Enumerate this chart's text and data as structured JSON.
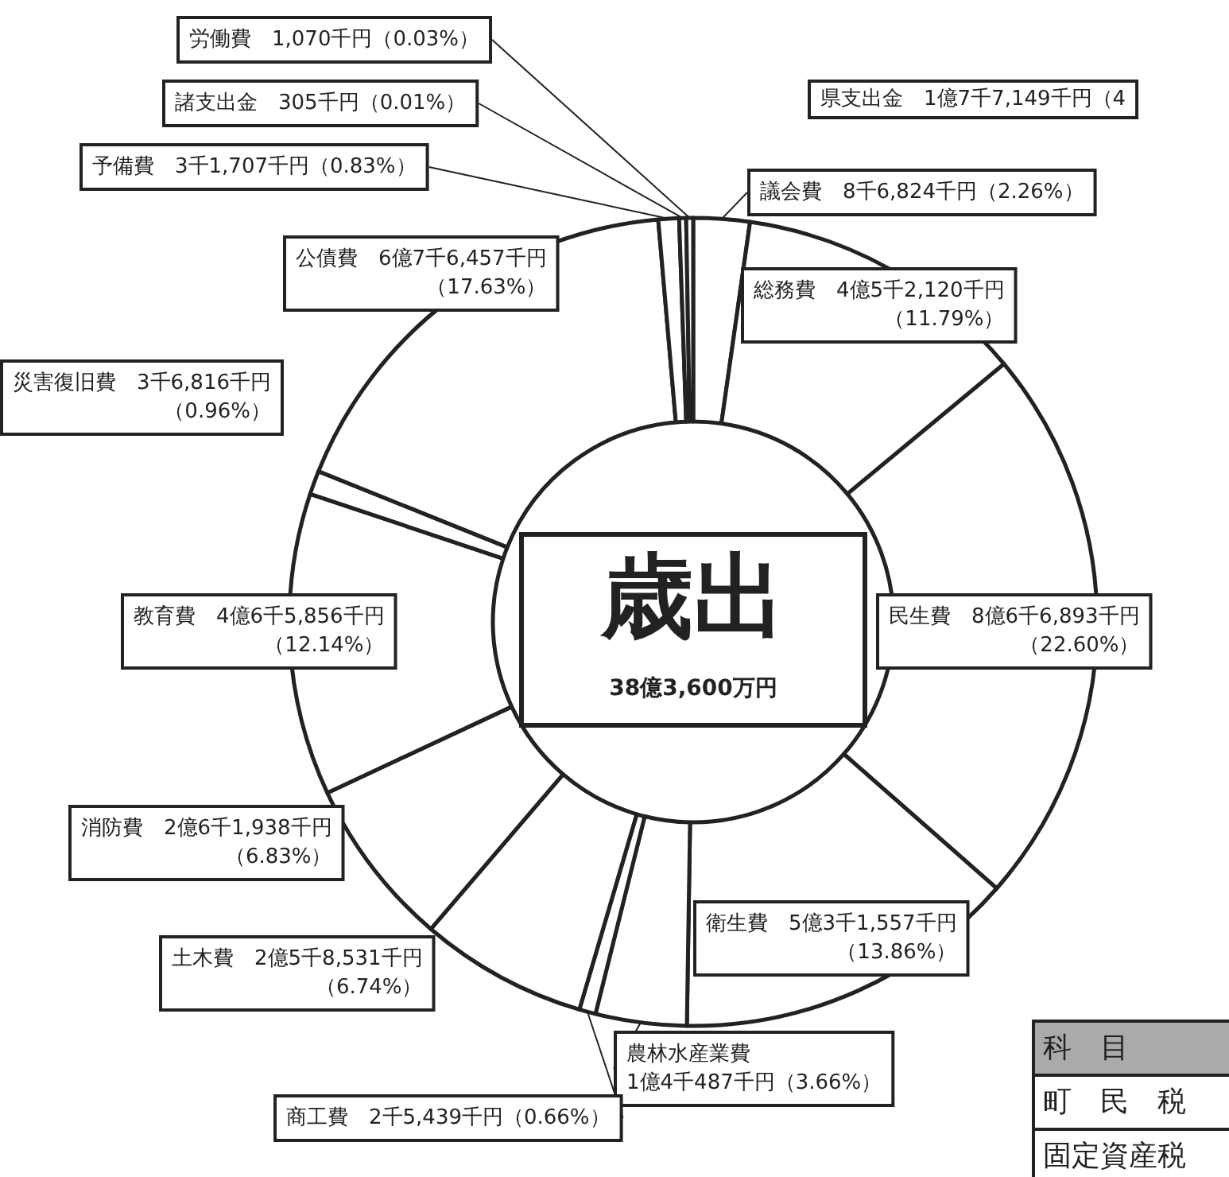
{
  "chart_data": {
    "type": "donut",
    "title": "歳出",
    "subtitle": "38億3,600万円",
    "categories": [
      "議会費",
      "総務費",
      "民生費",
      "衛生費",
      "農林水産業費",
      "商工費",
      "土木費",
      "消防費",
      "教育費",
      "災害復旧費",
      "公債費",
      "予備費",
      "諸支出金",
      "労働費"
    ],
    "values": [
      2.26,
      11.79,
      22.6,
      13.86,
      3.66,
      0.66,
      6.74,
      6.83,
      12.14,
      0.96,
      17.63,
      0.83,
      0.01,
      0.03
    ],
    "value_labels": [
      "8千6,824千円（2.26%）",
      "4億5千2,120千円（11.79%）",
      "8億6千6,893千円（22.60%）",
      "5億3千1,557千円（13.86%）",
      "1億4千487千円（3.66%）",
      "2千5,439千円（0.66%）",
      "2億5千8,531千円（6.74%）",
      "2億6千1,938千円（6.83%）",
      "4億6千5,856千円（12.14%）",
      "3千6,816千円（0.96%）",
      "6億7千6,457千円（17.63%）",
      "3千1,707千円（0.83%）",
      "305千円（0.01%）",
      "1,070千円（0.03%）"
    ],
    "colors": [
      "#ffffff",
      "#ffffff",
      "#ffffff",
      "#ffffff",
      "#ffffff",
      "#ffffff",
      "#ffffff",
      "#ffffff",
      "#ffffff",
      "#ffffff",
      "#ffffff",
      "#ffffff",
      "#ffffff",
      "#ffffff"
    ],
    "annotations": [
      "県支出金　1億7千7,149千円（4",
      "科　目",
      "町　民　税",
      "固定資産税"
    ]
  }
}
